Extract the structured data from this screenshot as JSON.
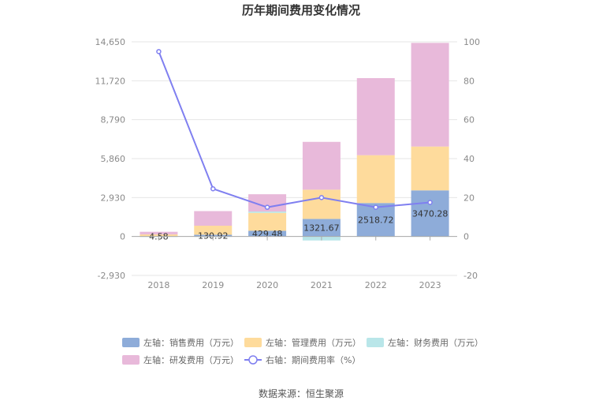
{
  "chart_data": {
    "type": "bar",
    "title": "历年期间费用变化情况",
    "categories": [
      "2018",
      "2019",
      "2020",
      "2021",
      "2022",
      "2023"
    ],
    "stacked": true,
    "series": [
      {
        "name": "左轴：销售费用（万元）",
        "axis": "left",
        "color": "#8eacd9",
        "values": [
          4.58,
          130.92,
          429.48,
          1321.67,
          2518.72,
          3470.28
        ],
        "labels": [
          "4.58",
          "130.92",
          "429.48",
          "1321.67",
          "2518.72",
          "3470.28"
        ]
      },
      {
        "name": "左轴：管理费用（万元）",
        "axis": "left",
        "color": "#fedb9c",
        "values": [
          150,
          680,
          1350,
          2200,
          3600,
          3300
        ]
      },
      {
        "name": "左轴：财务费用（万元）",
        "axis": "left",
        "color": "#b9e6e9",
        "values": [
          -30,
          -20,
          100,
          -300,
          -10,
          -30
        ]
      },
      {
        "name": "左轴：研发费用（万元）",
        "axis": "left",
        "color": "#e8b9da",
        "values": [
          200,
          1100,
          1300,
          3600,
          5800,
          7800
        ]
      },
      {
        "name": "右轴：期间费用率（%）",
        "axis": "right",
        "type": "line",
        "color": "#7f7ff0",
        "values": [
          95,
          24.5,
          15,
          20,
          15,
          17.5
        ]
      }
    ],
    "left_axis": {
      "min": -2930,
      "max": 14650,
      "ticks": [
        "-2,930",
        "0",
        "2,930",
        "5,860",
        "8,790",
        "11,720",
        "14,650"
      ]
    },
    "right_axis": {
      "min": -20,
      "max": 100,
      "ticks": [
        "-20",
        "0",
        "20",
        "40",
        "60",
        "80",
        "100"
      ]
    },
    "legend_position": "bottom",
    "grid": true,
    "source": "数据来源：恒生聚源"
  }
}
